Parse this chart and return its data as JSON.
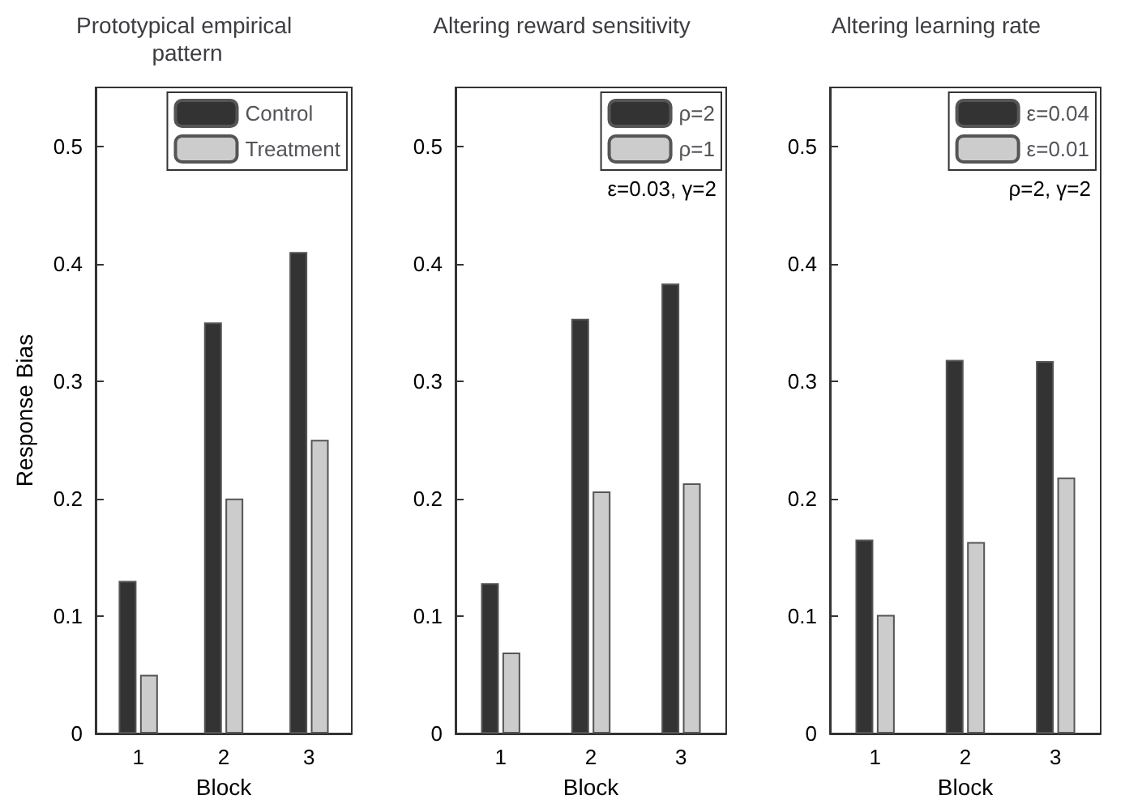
{
  "chart_data": [
    {
      "type": "bar",
      "title": "Prototypical empirical pattern",
      "xlabel": "Block",
      "ylabel": "Response Bias",
      "categories": [
        "1",
        "2",
        "3"
      ],
      "ylim": [
        0,
        0.55
      ],
      "yticks": [
        0,
        0.1,
        0.2,
        0.3,
        0.4,
        0.5
      ],
      "legend": "top right",
      "grid": false,
      "series": [
        {
          "name": "Control",
          "color": "#333333",
          "values": [
            0.13,
            0.35,
            0.41
          ]
        },
        {
          "name": "Treatment",
          "color": "#cccccc",
          "values": [
            0.05,
            0.2,
            0.25
          ]
        }
      ]
    },
    {
      "type": "bar",
      "title": "Altering reward sensitivity",
      "xlabel": "Block",
      "categories": [
        "1",
        "2",
        "3"
      ],
      "ylim": [
        0,
        0.55
      ],
      "yticks": [
        0,
        0.1,
        0.2,
        0.3,
        0.4,
        0.5
      ],
      "legend": "top right",
      "grid": false,
      "annotations": [
        "ε=0.03, γ=2"
      ],
      "series": [
        {
          "name": "ρ=2",
          "color": "#333333",
          "values": [
            0.128,
            0.353,
            0.383
          ]
        },
        {
          "name": "ρ=1",
          "color": "#cccccc",
          "values": [
            0.069,
            0.206,
            0.213
          ]
        }
      ]
    },
    {
      "type": "bar",
      "title": "Altering learning rate",
      "xlabel": "Block",
      "categories": [
        "1",
        "2",
        "3"
      ],
      "ylim": [
        0,
        0.55
      ],
      "yticks": [
        0,
        0.1,
        0.2,
        0.3,
        0.4,
        0.5
      ],
      "legend": "top right",
      "grid": false,
      "annotations": [
        "ρ=2, γ=2"
      ],
      "series": [
        {
          "name": "ε=0.04",
          "color": "#333333",
          "values": [
            0.165,
            0.318,
            0.317
          ]
        },
        {
          "name": "ε=0.01",
          "color": "#cccccc",
          "values": [
            0.101,
            0.163,
            0.218
          ]
        }
      ]
    }
  ]
}
